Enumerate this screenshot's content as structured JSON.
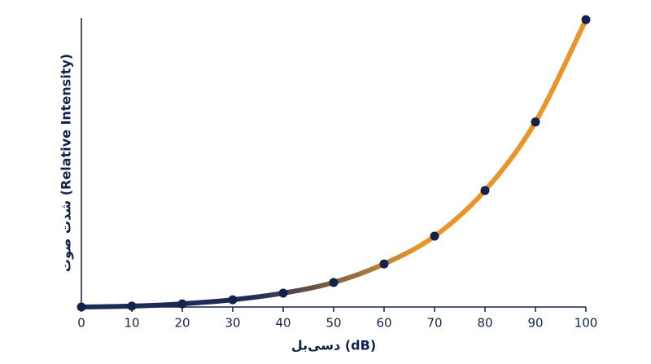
{
  "chart_data": {
    "type": "line",
    "x_label": "دسی‌بل (dB)",
    "y_label": "شدت صوت (Relative Intensity)",
    "x": [
      0,
      10,
      20,
      30,
      40,
      50,
      60,
      70,
      80,
      90,
      100
    ],
    "series": [
      {
        "values": [
          0,
          0.3,
          1.1,
          2.5,
          4.8,
          8.5,
          14.9,
          24.5,
          40.3,
          64.0,
          99.4
        ],
        "gradient": [
          "#1c2a56",
          "#1c2a56",
          "#e8962a",
          "#e8962a"
        ],
        "marker_color": "#13224a"
      }
    ],
    "xlim": [
      0,
      100
    ],
    "xticks": [
      0,
      10,
      20,
      30,
      40,
      50,
      60,
      70,
      80,
      90,
      100
    ],
    "ylim": [
      0,
      100
    ],
    "axis_color": "#13224a"
  }
}
